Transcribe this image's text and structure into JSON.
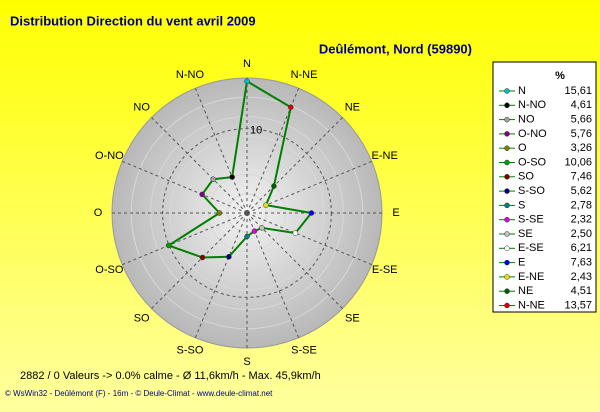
{
  "chart_data": {
    "type": "radar",
    "title": "Distribution Direction du vent   avril 2009",
    "subtitle": "Deûlémont, Nord (59890)",
    "legend_header": "%",
    "categories": [
      "N",
      "N-NO",
      "NO",
      "O-NO",
      "O",
      "O-SO",
      "SO",
      "S-SO",
      "S",
      "S-SE",
      "SE",
      "E-SE",
      "E",
      "E-NE",
      "NE",
      "N-NE"
    ],
    "values": [
      15.61,
      4.61,
      5.66,
      5.76,
      3.26,
      10.06,
      7.46,
      5.62,
      2.78,
      2.32,
      2.5,
      6.21,
      7.63,
      2.43,
      4.51,
      13.57
    ],
    "value_labels": [
      "15,61",
      "4,61",
      "5,66",
      "5,76",
      "3,26",
      "10,06",
      "7,46",
      "5,62",
      "2,78",
      "2,32",
      "2,50",
      "6,21",
      "7,63",
      "2,43",
      "4,51",
      "13,57"
    ],
    "colors": [
      "#00c0c0",
      "#000000",
      "#a0a0a0",
      "#800080",
      "#808000",
      "#00a000",
      "#800000",
      "#000080",
      "#008080",
      "#e000e0",
      "#c0c0c0",
      "#ffffff",
      "#0000ff",
      "#e0e000",
      "#006000",
      "#e00000"
    ],
    "line_color": "#008000",
    "rlim": [
      0,
      16
    ],
    "rticks": [
      10
    ],
    "direction": "counterclockwise",
    "footer": [
      "2882 / 0 Valeurs  -> 0.0% calme   -   Ø 11,6km/h  -  Max. 45,9km/h",
      "© WsWin32  -  Deûlémont (F) - 16m  -  © Deule-Climat - www.deule-climat.net"
    ]
  }
}
